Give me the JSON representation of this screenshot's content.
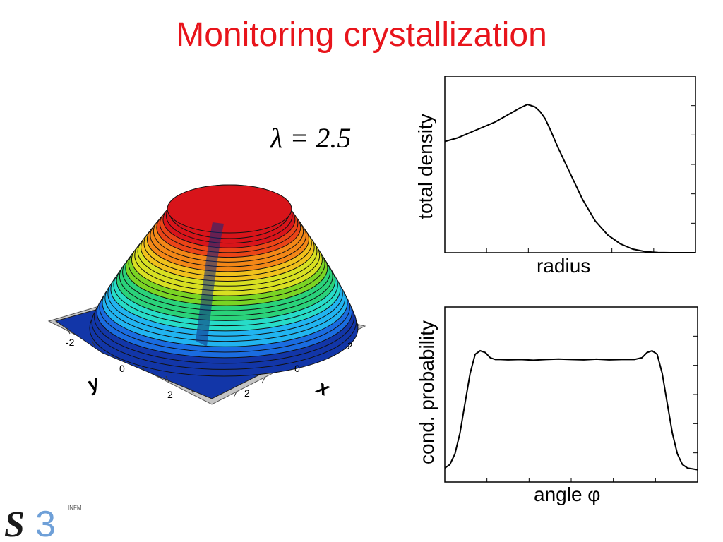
{
  "slide": {
    "title": "Monitoring crystallization",
    "lambda_label": "λ = 2.5"
  },
  "surface3d": {
    "y_axis_letter": "y",
    "x_axis_letter": "x",
    "y_ticks": [
      "-2",
      "0",
      "2"
    ],
    "x_ticks": [
      "-2",
      "0",
      "2"
    ],
    "colors": [
      "#1236a8",
      "#1a6ce0",
      "#21b4f0",
      "#27dcc8",
      "#2ad27a",
      "#7ad424",
      "#d8e022",
      "#f0c11c",
      "#f38717",
      "#ea4417",
      "#d8141a"
    ]
  },
  "chart_data": [
    {
      "type": "line",
      "title": "",
      "xlabel": "radius",
      "ylabel": "total density",
      "grid": false,
      "legend": "none",
      "xlim": [
        0,
        1
      ],
      "ylim": [
        0,
        1
      ],
      "series": [
        {
          "x": [
            0.0,
            0.05,
            0.1,
            0.15,
            0.2,
            0.25,
            0.3,
            0.33,
            0.36,
            0.38,
            0.4,
            0.42,
            0.45,
            0.5,
            0.55,
            0.6,
            0.65,
            0.7,
            0.75,
            0.8,
            0.85,
            0.9,
            1.0
          ],
          "values": [
            0.63,
            0.65,
            0.68,
            0.71,
            0.74,
            0.78,
            0.82,
            0.84,
            0.826,
            0.8,
            0.76,
            0.7,
            0.6,
            0.45,
            0.3,
            0.18,
            0.1,
            0.05,
            0.02,
            0.006,
            0.001,
            0.0,
            0.0
          ]
        }
      ]
    },
    {
      "type": "line",
      "title": "",
      "xlabel": "angle φ",
      "ylabel": "cond. probability",
      "grid": false,
      "legend": "none",
      "xlim": [
        0,
        1
      ],
      "ylim": [
        0,
        1
      ],
      "series": [
        {
          "x": [
            0.0,
            0.02,
            0.04,
            0.06,
            0.08,
            0.1,
            0.12,
            0.14,
            0.16,
            0.18,
            0.2,
            0.22,
            0.25,
            0.3,
            0.35,
            0.4,
            0.45,
            0.5,
            0.55,
            0.6,
            0.65,
            0.7,
            0.75,
            0.78,
            0.8,
            0.82,
            0.84,
            0.86,
            0.88,
            0.9,
            0.92,
            0.94,
            0.96,
            0.98,
            1.0
          ],
          "values": [
            0.08,
            0.1,
            0.16,
            0.28,
            0.45,
            0.62,
            0.73,
            0.75,
            0.74,
            0.71,
            0.7,
            0.7,
            0.698,
            0.7,
            0.696,
            0.7,
            0.703,
            0.7,
            0.698,
            0.702,
            0.698,
            0.7,
            0.7,
            0.71,
            0.74,
            0.75,
            0.73,
            0.62,
            0.45,
            0.28,
            0.16,
            0.1,
            0.08,
            0.075,
            0.07
          ]
        }
      ]
    }
  ],
  "logo": {
    "main": "S3",
    "superscript": "INFM",
    "accent": "#6fa0d8"
  }
}
